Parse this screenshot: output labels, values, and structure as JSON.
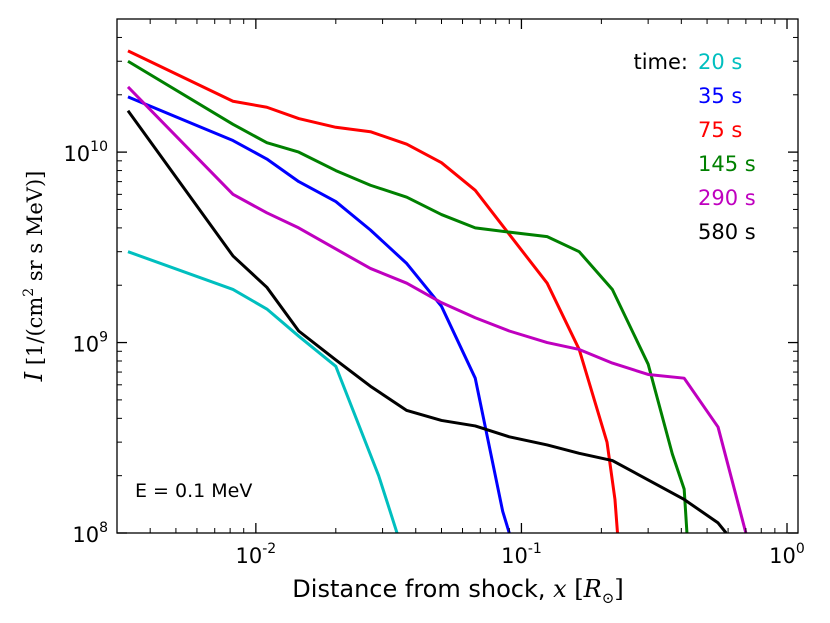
{
  "chart_data": {
    "type": "line",
    "title": "",
    "xscale": "log",
    "yscale": "log",
    "xlim": [
      0.003,
      1.1
    ],
    "ylim": [
      100000000,
      50000000000
    ],
    "xlabel": {
      "text": "Distance from shock, ",
      "symbol": "x",
      "unit_open": " [",
      "unit_symbol": "R",
      "unit_sub": "⊙",
      "unit_close": "]"
    },
    "ylabel": {
      "symbol": "I",
      "bracket_open": " [1/(cm",
      "sup": "2",
      "rest": "  sr s MeV)]"
    },
    "x_ticks": [
      {
        "value": 0.01,
        "base": "10",
        "exp": "-2"
      },
      {
        "value": 0.1,
        "base": "10",
        "exp": "-1"
      },
      {
        "value": 1,
        "base": "10",
        "exp": "0"
      }
    ],
    "y_ticks": [
      {
        "value": 100000000,
        "base": "10",
        "exp": "8"
      },
      {
        "value": 1000000000,
        "base": "10",
        "exp": "9"
      },
      {
        "value": 10000000000,
        "base": "10",
        "exp": "10"
      }
    ],
    "legend": {
      "title": "time:",
      "placement": "top-right"
    },
    "annotation": "E = 0.1 MeV",
    "series": [
      {
        "name": "20 s",
        "color": "#00bfbf",
        "x": [
          0.0033,
          0.0082,
          0.011,
          0.0145,
          0.02,
          0.029,
          0.0325,
          0.034
        ],
        "y": [
          3000000000,
          1900000000,
          1500000000,
          1080000000,
          750000000,
          200000000,
          122000000,
          100000000
        ]
      },
      {
        "name": "35 s",
        "color": "#0000ff",
        "x": [
          0.0033,
          0.0082,
          0.011,
          0.0145,
          0.02,
          0.027,
          0.037,
          0.05,
          0.067,
          0.085,
          0.09
        ],
        "y": [
          19500000000,
          11500000000,
          9200000000,
          7000000000,
          5500000000,
          3900000000,
          2600000000,
          1550000000,
          650000000,
          130000000,
          100000000
        ]
      },
      {
        "name": "75 s",
        "color": "#ff0000",
        "x": [
          0.0033,
          0.0082,
          0.011,
          0.0145,
          0.02,
          0.027,
          0.037,
          0.05,
          0.067,
          0.09,
          0.125,
          0.165,
          0.21,
          0.225,
          0.23
        ],
        "y": [
          34000000000,
          18500000000,
          17200000000,
          15000000000,
          13500000000,
          12800000000,
          11000000000,
          8800000000,
          6300000000,
          3700000000,
          2050000000,
          920000000,
          300000000,
          150000000,
          100000000
        ]
      },
      {
        "name": "145 s",
        "color": "#008000",
        "x": [
          0.0033,
          0.0082,
          0.011,
          0.0145,
          0.02,
          0.027,
          0.037,
          0.05,
          0.067,
          0.09,
          0.125,
          0.165,
          0.22,
          0.3,
          0.37,
          0.41,
          0.42
        ],
        "y": [
          30000000000,
          14000000000,
          11200000000,
          10000000000,
          8000000000,
          6700000000,
          5800000000,
          4700000000,
          4000000000,
          3800000000,
          3600000000,
          3000000000,
          1900000000,
          770000000,
          260000000,
          170000000,
          100000000
        ]
      },
      {
        "name": "290 s",
        "color": "#bf00bf",
        "x": [
          0.0033,
          0.0082,
          0.011,
          0.0145,
          0.02,
          0.027,
          0.037,
          0.05,
          0.067,
          0.09,
          0.125,
          0.165,
          0.22,
          0.3,
          0.41,
          0.55,
          0.7
        ],
        "y": [
          22000000000,
          6000000000,
          4800000000,
          4000000000,
          3100000000,
          2450000000,
          2050000000,
          1620000000,
          1350000000,
          1150000000,
          1000000000,
          920000000,
          780000000,
          680000000,
          650000000,
          360000000,
          100000000
        ]
      },
      {
        "name": "580 s",
        "color": "#000000",
        "x": [
          0.0033,
          0.0082,
          0.011,
          0.0145,
          0.02,
          0.027,
          0.037,
          0.05,
          0.067,
          0.09,
          0.125,
          0.165,
          0.22,
          0.3,
          0.41,
          0.55,
          0.59
        ],
        "y": [
          16500000000,
          2850000000,
          1950000000,
          1150000000,
          810000000,
          590000000,
          440000000,
          390000000,
          365000000,
          320000000,
          290000000,
          262000000,
          240000000,
          190000000,
          150000000,
          113000000,
          100000000
        ]
      }
    ]
  }
}
